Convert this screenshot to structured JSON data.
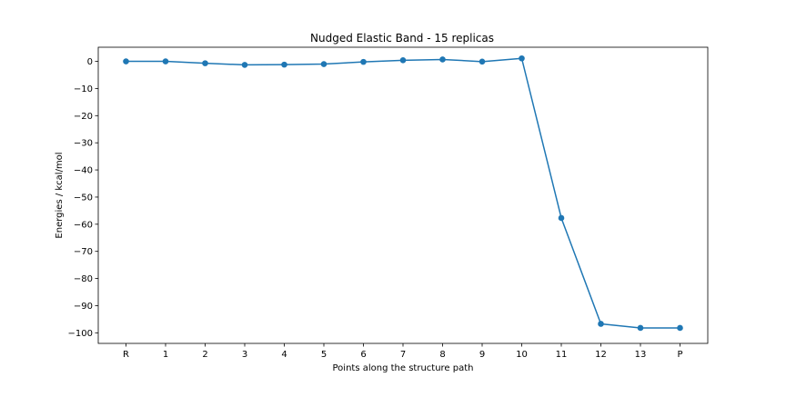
{
  "chart_data": {
    "type": "line",
    "title": "Nudged Elastic Band - 15 replicas",
    "xlabel": "Points along the structure path",
    "ylabel": "Energies / kcal/mol",
    "categories": [
      "R",
      "1",
      "2",
      "3",
      "4",
      "5",
      "6",
      "7",
      "8",
      "9",
      "10",
      "11",
      "12",
      "13",
      "P"
    ],
    "series": [
      {
        "values": [
          0.0,
          0.0,
          -0.7,
          -1.3,
          -1.2,
          -1.0,
          -0.2,
          0.4,
          0.7,
          -0.1,
          1.1,
          -57.7,
          -96.7,
          -98.2,
          -98.2
        ],
        "color": "#1f77b4",
        "marker": "circle"
      }
    ],
    "yticks": [
      0,
      -10,
      -20,
      -30,
      -40,
      -50,
      -60,
      -70,
      -80,
      -90,
      -100
    ],
    "ytick_labels": [
      "0",
      "−10",
      "−20",
      "−30",
      "−40",
      "−50",
      "−60",
      "−70",
      "−80",
      "−90",
      "−100"
    ],
    "ylim": [
      -103.9,
      5.2
    ],
    "grid": false,
    "legend": false
  }
}
